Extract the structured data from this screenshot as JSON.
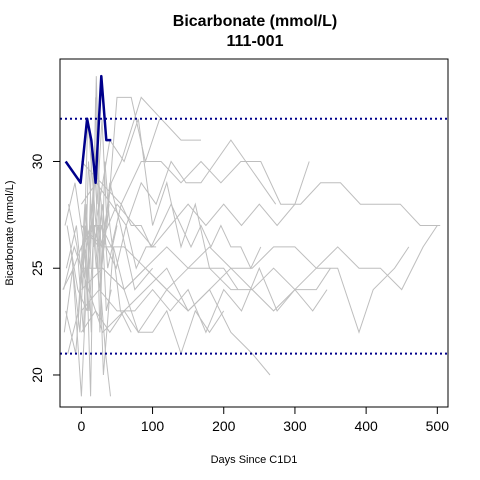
{
  "chart_data": {
    "type": "line",
    "title": "Bicarbonate (mmol/L)",
    "subtitle": "111-001",
    "xlabel": "Days Since C1D1",
    "ylabel": "Bicarbonate (mmol/L)",
    "xlim": [
      -30,
      515
    ],
    "ylim": [
      18.5,
      34.8
    ],
    "xticks": [
      0,
      100,
      200,
      300,
      400,
      500
    ],
    "yticks": [
      20,
      25,
      30
    ],
    "reference_lines": [
      {
        "y": 32,
        "color": "#00008b",
        "style": "dotted"
      },
      {
        "y": 21,
        "color": "#00008b",
        "style": "dotted"
      }
    ],
    "colors": {
      "highlight": "#00008b",
      "background": "#bebebe"
    },
    "highlight": {
      "name": "111-001",
      "x": [
        -22,
        -1,
        8,
        14,
        20,
        28,
        35,
        42
      ],
      "y": [
        30,
        29,
        32,
        31,
        29,
        34,
        31,
        31
      ]
    },
    "background_series": [
      {
        "x": [
          -25,
          -10,
          0,
          14,
          28,
          42,
          56,
          84,
          112,
          140,
          168
        ],
        "y": [
          24,
          26,
          25,
          27,
          26,
          29,
          30,
          33,
          32,
          31,
          31
        ]
      },
      {
        "x": [
          -20,
          -5,
          8,
          15,
          22,
          29,
          36,
          50,
          70,
          90,
          110
        ],
        "y": [
          27,
          24,
          23,
          31,
          28,
          32,
          27,
          33,
          33,
          30,
          32
        ]
      },
      {
        "x": [
          -22,
          -8,
          1,
          7,
          14,
          21,
          28,
          40,
          55,
          75,
          100
        ],
        "y": [
          23,
          21,
          25,
          28,
          22,
          34,
          25,
          29,
          27,
          24,
          25
        ]
      },
      {
        "x": [
          -18,
          -6,
          3,
          10,
          17,
          24,
          31,
          45,
          60,
          80,
          100,
          120
        ],
        "y": [
          28,
          26,
          22,
          30,
          26,
          27,
          20,
          26,
          24,
          22,
          23,
          24
        ]
      },
      {
        "x": [
          -24,
          -12,
          0,
          7,
          14,
          21,
          28,
          35,
          42
        ],
        "y": [
          22,
          25,
          19,
          24,
          27,
          30,
          28,
          23,
          24
        ]
      },
      {
        "x": [
          -15,
          -2,
          6,
          13,
          20,
          27,
          34,
          41
        ],
        "y": [
          26,
          22,
          27,
          19,
          33,
          24,
          21,
          19
        ]
      },
      {
        "x": [
          -21,
          -7,
          2,
          9,
          16,
          23,
          30,
          37,
          50
        ],
        "y": [
          25,
          27,
          24,
          32,
          29,
          26,
          28,
          25,
          27
        ]
      },
      {
        "x": [
          -19,
          -4,
          5,
          12,
          19,
          26,
          33,
          40,
          55,
          70
        ],
        "y": [
          21,
          23,
          28,
          25,
          31,
          22,
          30,
          27,
          23,
          22
        ]
      },
      {
        "x": [
          -26,
          -11,
          0,
          7,
          14,
          21,
          28,
          35,
          49,
          63,
          77,
          91,
          105
        ],
        "y": [
          24,
          25,
          26,
          24,
          28,
          25,
          27,
          26,
          25,
          27,
          25,
          26,
          26
        ]
      },
      {
        "x": [
          -23,
          -9,
          4,
          11,
          18,
          25,
          32,
          39
        ],
        "y": [
          27,
          29,
          26,
          23,
          27,
          24,
          26,
          28
        ]
      },
      {
        "x": [
          0,
          28,
          56,
          84,
          112,
          140,
          168,
          196,
          224,
          252,
          280,
          308,
          336,
          364,
          392,
          420,
          448,
          476,
          504
        ],
        "y": [
          30,
          29,
          28,
          30,
          30,
          29,
          30,
          29,
          30,
          30,
          28,
          28,
          29,
          29,
          28,
          28,
          28,
          27,
          27
        ]
      },
      {
        "x": [
          0,
          30,
          60,
          90,
          120,
          150,
          180,
          210,
          240,
          270,
          300,
          330,
          360,
          390,
          420,
          450,
          480,
          500
        ],
        "y": [
          27,
          26,
          26,
          25,
          26,
          25,
          26,
          25,
          25,
          26,
          26,
          25,
          26,
          25,
          25,
          24,
          26,
          27
        ]
      },
      {
        "x": [
          0,
          25,
          50,
          75,
          100,
          125,
          150,
          175,
          200,
          225,
          250,
          275,
          300,
          325,
          345
        ],
        "y": [
          23,
          24,
          23,
          23,
          24,
          23,
          24,
          22,
          24,
          23,
          25,
          23,
          24,
          23,
          24
        ]
      },
      {
        "x": [
          0,
          30,
          60,
          90,
          120,
          150,
          180,
          210,
          240,
          265
        ],
        "y": [
          25,
          22,
          23,
          24,
          25,
          23,
          24,
          22,
          21,
          20
        ]
      },
      {
        "x": [
          0,
          30,
          60,
          90,
          120,
          150,
          180,
          210,
          240,
          270,
          300,
          330,
          360,
          390,
          410,
          440,
          460
        ],
        "y": [
          25,
          25,
          24,
          25,
          24,
          25,
          25,
          24,
          24,
          25,
          24,
          25,
          25,
          22,
          24,
          25,
          26
        ]
      },
      {
        "x": [
          0,
          20,
          40,
          60,
          80,
          100,
          120,
          140,
          160,
          180,
          200,
          220
        ],
        "y": [
          26,
          27,
          31,
          30,
          32,
          27,
          29,
          26,
          28,
          25,
          25,
          24
        ]
      },
      {
        "x": [
          0,
          20,
          40,
          60,
          80,
          100,
          120,
          140,
          160,
          180,
          200
        ],
        "y": [
          22,
          23,
          22,
          23,
          22,
          22,
          23,
          21,
          23,
          22,
          23
        ]
      },
      {
        "x": [
          0,
          21,
          42,
          63,
          84,
          105,
          126,
          147,
          168,
          189,
          210,
          231,
          252,
          273
        ],
        "y": [
          28,
          29,
          28,
          27,
          29,
          28,
          30,
          29,
          29,
          30,
          31,
          30,
          29,
          28
        ]
      },
      {
        "x": [
          0,
          14,
          28,
          42,
          56,
          70,
          84,
          98,
          112,
          126,
          140,
          154,
          168,
          182,
          196,
          210,
          224,
          238,
          252
        ],
        "y": [
          26,
          27,
          27,
          26,
          28,
          27,
          27,
          26,
          27,
          28,
          27,
          26,
          27,
          26,
          27,
          26,
          26,
          25,
          26
        ]
      },
      {
        "x": [
          0,
          25,
          50,
          75,
          100,
          125,
          150,
          175,
          200,
          225,
          250,
          275,
          300,
          320
        ],
        "y": [
          27,
          26,
          28,
          27,
          26,
          27,
          28,
          27,
          28,
          27,
          28,
          27,
          28,
          30
        ]
      },
      {
        "x": [
          0,
          30,
          60,
          90,
          120,
          150,
          180,
          210,
          240,
          270,
          300,
          330,
          350
        ],
        "y": [
          24,
          25,
          24,
          25,
          24,
          23,
          24,
          25,
          24,
          23,
          24,
          24,
          25
        ]
      }
    ]
  }
}
